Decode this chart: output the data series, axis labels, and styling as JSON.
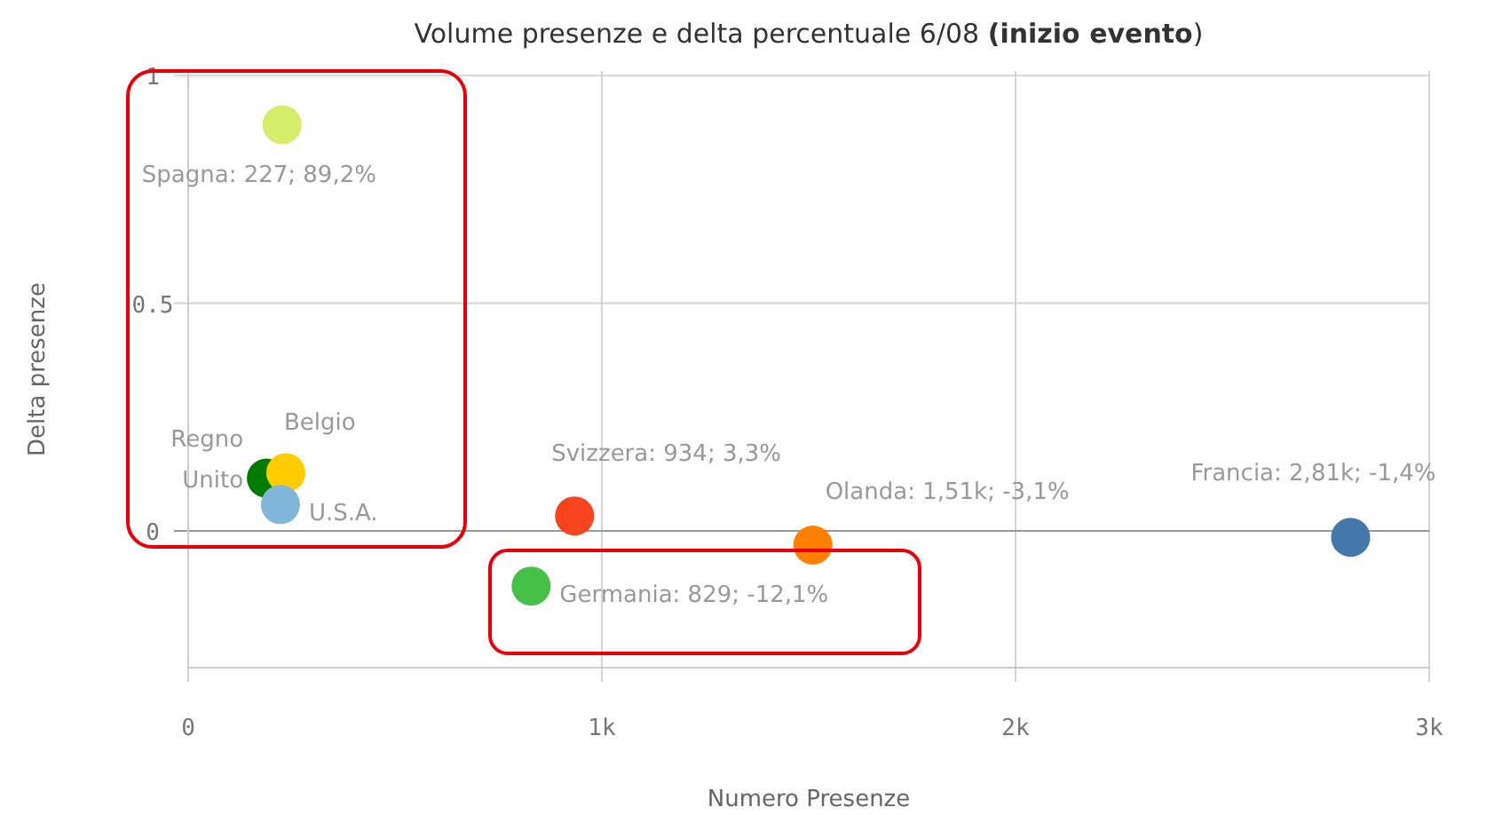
{
  "chart_data": {
    "type": "scatter",
    "title": "Volume presenze e delta percentuale 6/08 (inizio evento)",
    "xlabel": "Numero Presenze",
    "ylabel": "Delta presenze",
    "x": [
      227,
      189,
      236,
      223,
      829,
      934,
      1510,
      2810
    ],
    "values": [
      0.892,
      0.116,
      0.128,
      0.058,
      -0.121,
      0.033,
      -0.031,
      -0.014
    ],
    "colors": [
      "#d4ed6a",
      "#007d00",
      "#ffcc00",
      "#7fb6da",
      "#46c046",
      "#f5441e",
      "#ff8000",
      "#4477aa"
    ],
    "value_labels": [
      "Spagna: 227; 89,2%",
      "Regno Unito",
      "Belgio",
      "U.S.A.",
      "Germania: 829; -12,1%",
      "Svizzera: 934; 3,3%",
      "Olanda: 1,51k; -3,1%",
      "Francia: 2,81k; -1,4%"
    ],
    "xlim": [
      0,
      3000
    ],
    "xticks": [
      0,
      {
        "value": 1000,
        "label": "1k"
      },
      {
        "value": 2000,
        "label": "2k"
      },
      {
        "value": 3000,
        "label": "3k"
      }
    ],
    "ylim": [
      -0.3,
      1.01
    ],
    "yticks": [
      0,
      0.5,
      1
    ],
    "grid": true,
    "marker": "circle"
  }
}
